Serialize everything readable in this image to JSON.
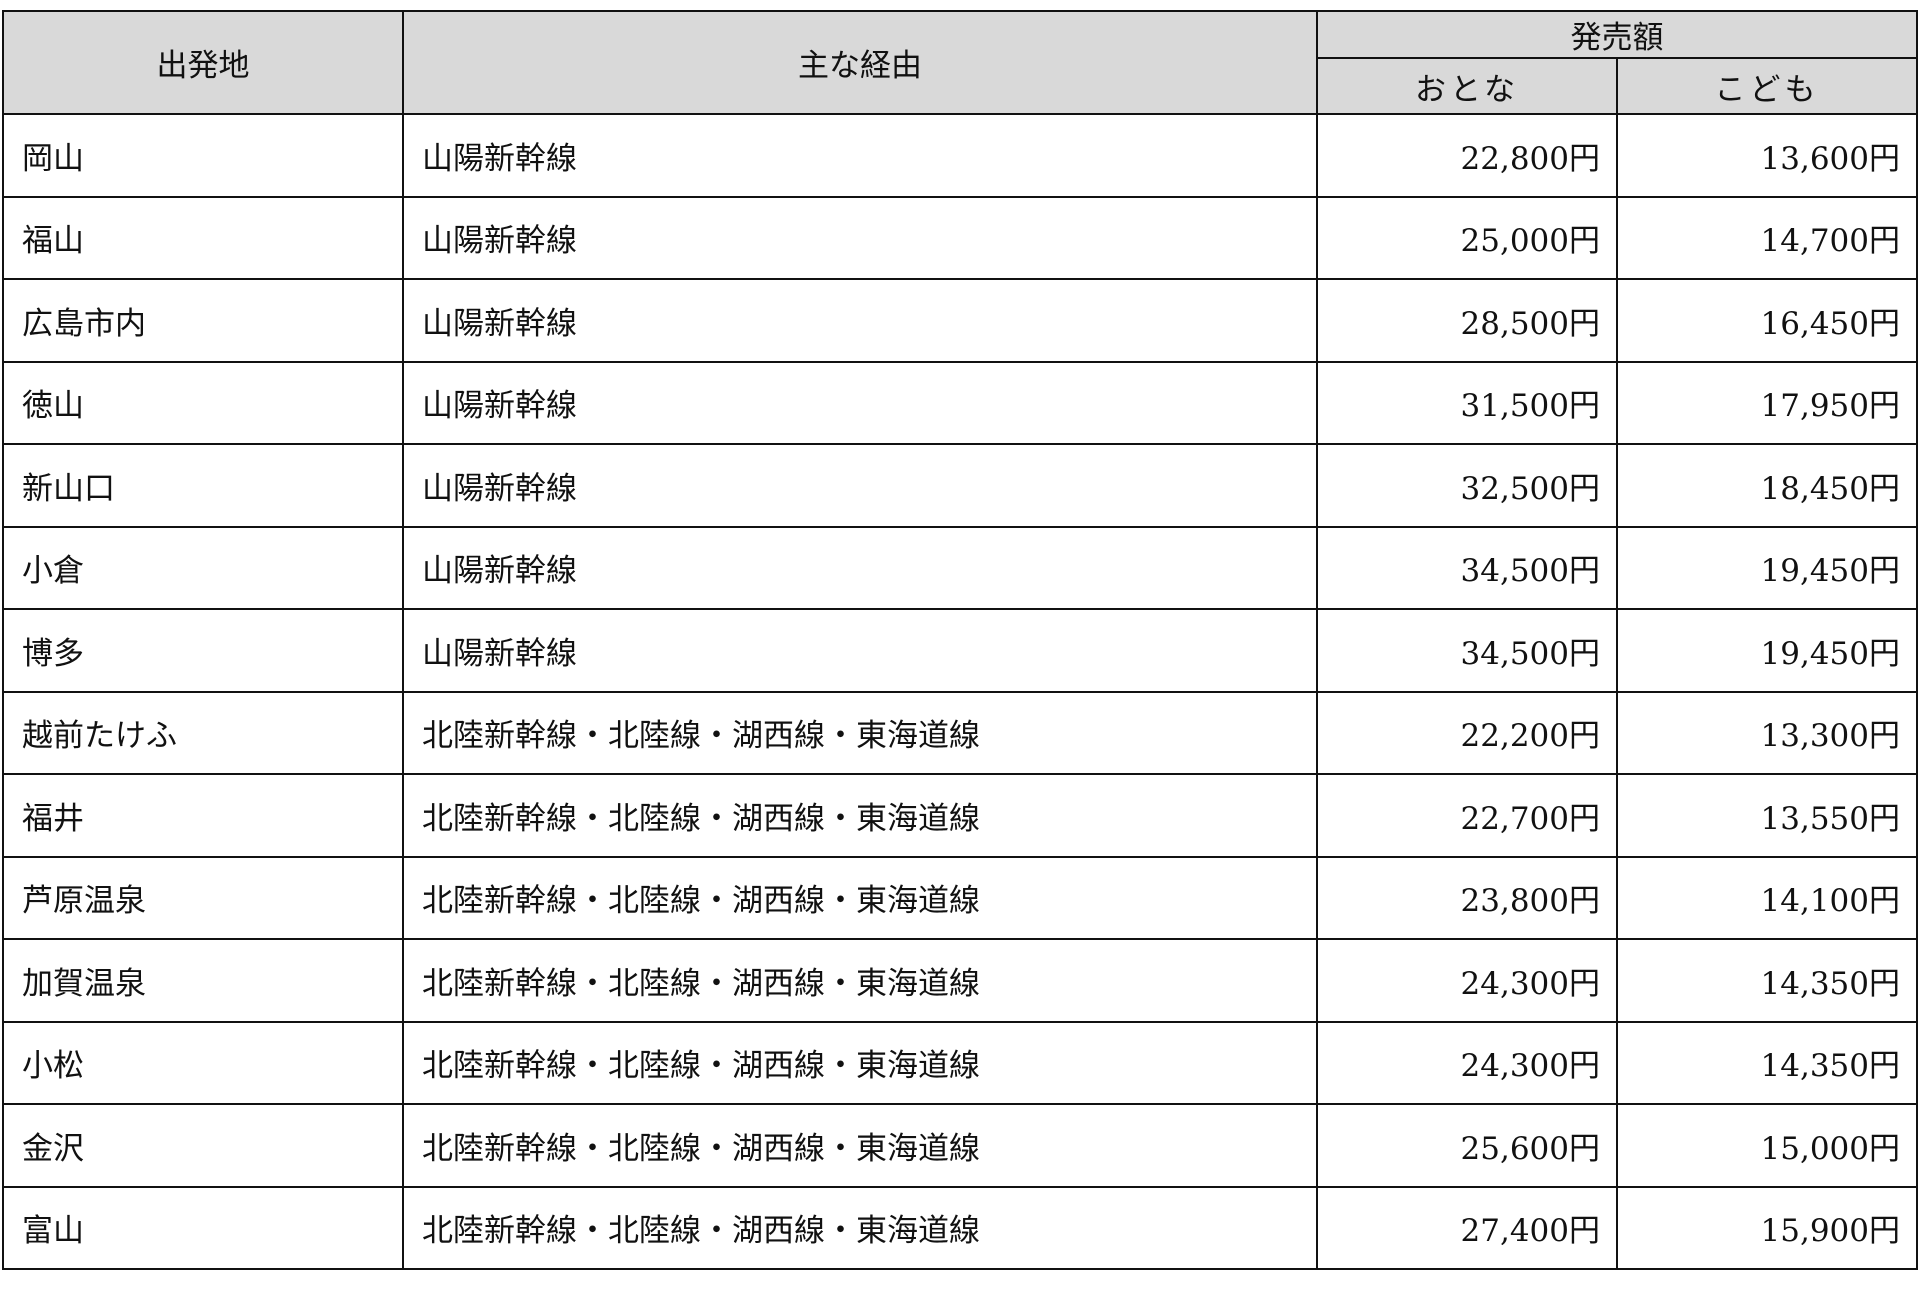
{
  "headers": {
    "origin": "出発地",
    "route": "主な経由",
    "price": "発売額",
    "adult": "おとな",
    "child": "こども"
  },
  "rows": [
    {
      "origin": "岡山",
      "route": "山陽新幹線",
      "adult": "22,800円",
      "child": "13,600円"
    },
    {
      "origin": "福山",
      "route": "山陽新幹線",
      "adult": "25,000円",
      "child": "14,700円"
    },
    {
      "origin": "広島市内",
      "route": "山陽新幹線",
      "adult": "28,500円",
      "child": "16,450円"
    },
    {
      "origin": "徳山",
      "route": "山陽新幹線",
      "adult": "31,500円",
      "child": "17,950円"
    },
    {
      "origin": "新山口",
      "route": "山陽新幹線",
      "adult": "32,500円",
      "child": "18,450円"
    },
    {
      "origin": "小倉",
      "route": "山陽新幹線",
      "adult": "34,500円",
      "child": "19,450円"
    },
    {
      "origin": "博多",
      "route": "山陽新幹線",
      "adult": "34,500円",
      "child": "19,450円"
    },
    {
      "origin": "越前たけふ",
      "route": "北陸新幹線・北陸線・湖西線・東海道線",
      "adult": "22,200円",
      "child": "13,300円"
    },
    {
      "origin": "福井",
      "route": "北陸新幹線・北陸線・湖西線・東海道線",
      "adult": "22,700円",
      "child": "13,550円"
    },
    {
      "origin": "芦原温泉",
      "route": "北陸新幹線・北陸線・湖西線・東海道線",
      "adult": "23,800円",
      "child": "14,100円"
    },
    {
      "origin": "加賀温泉",
      "route": "北陸新幹線・北陸線・湖西線・東海道線",
      "adult": "24,300円",
      "child": "14,350円"
    },
    {
      "origin": "小松",
      "route": "北陸新幹線・北陸線・湖西線・東海道線",
      "adult": "24,300円",
      "child": "14,350円"
    },
    {
      "origin": "金沢",
      "route": "北陸新幹線・北陸線・湖西線・東海道線",
      "adult": "25,600円",
      "child": "15,000円"
    },
    {
      "origin": "富山",
      "route": "北陸新幹線・北陸線・湖西線・東海道線",
      "adult": "27,400円",
      "child": "15,900円"
    }
  ]
}
